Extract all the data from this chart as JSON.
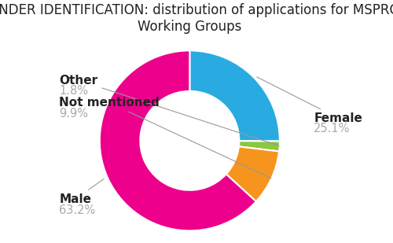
{
  "title": "GENDER IDENTIFICATION: distribution of applications for MSPRO\nWorking Groups",
  "slices": [
    {
      "label": "Female",
      "pct_label": "25.1%",
      "value": 25.1,
      "color": "#29ABE2"
    },
    {
      "label": "Other",
      "pct_label": "1.8%",
      "value": 1.8,
      "color": "#8DC63F"
    },
    {
      "label": "Not mentioned",
      "pct_label": "9.9%",
      "value": 9.9,
      "color": "#F7941D"
    },
    {
      "label": "Male",
      "pct_label": "63.2%",
      "value": 63.2,
      "color": "#EC008C"
    }
  ],
  "bg_color": "#ffffff",
  "title_fontsize": 12,
  "label_fontsize": 11,
  "pct_fontsize": 10.5,
  "label_color": "#222222",
  "pct_color": "#aaaaaa",
  "wedge_edge_color": "#ffffff",
  "donut_width": 0.45,
  "start_angle": 90
}
